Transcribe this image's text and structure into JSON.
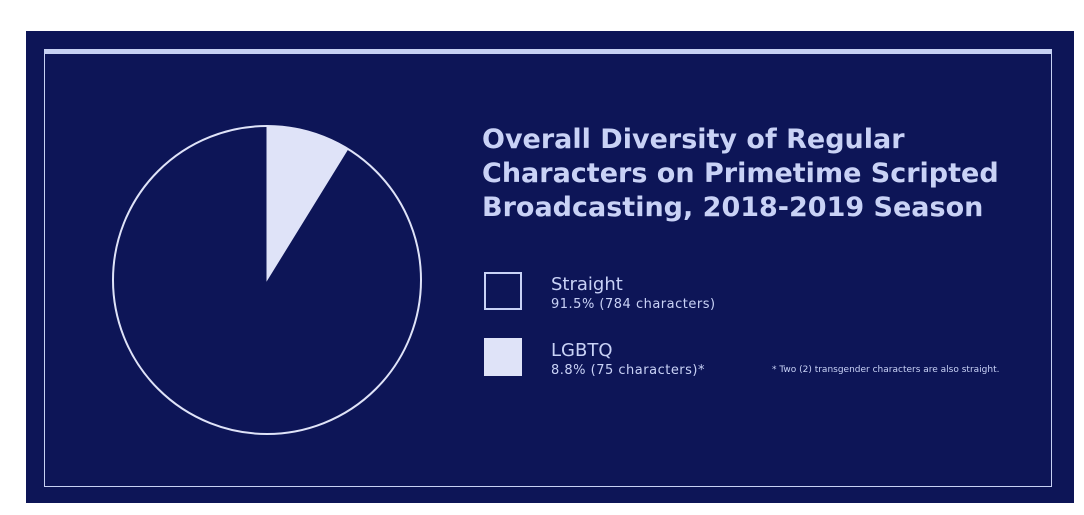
{
  "chart_data": {
    "type": "pie",
    "title": "Overall Diversity of Regular Characters on Primetime Scripted Broadcasting, 2018-2019 Season",
    "slices": [
      {
        "label": "Straight",
        "value": 91.5,
        "count": 784,
        "value_text": "91.5% (784 characters)",
        "color": "#0d1557"
      },
      {
        "label": "LGBTQ",
        "value": 8.8,
        "count": 75,
        "value_text": "8.8% (75 characters)*",
        "color": "#dfe3f8"
      }
    ],
    "legend_placement": "right",
    "footnote": "* Two (2) transgender characters are also straight."
  },
  "colors": {
    "background": "#0d1557",
    "accent": "#c9d2f6",
    "outline": "#dfe3f8"
  }
}
